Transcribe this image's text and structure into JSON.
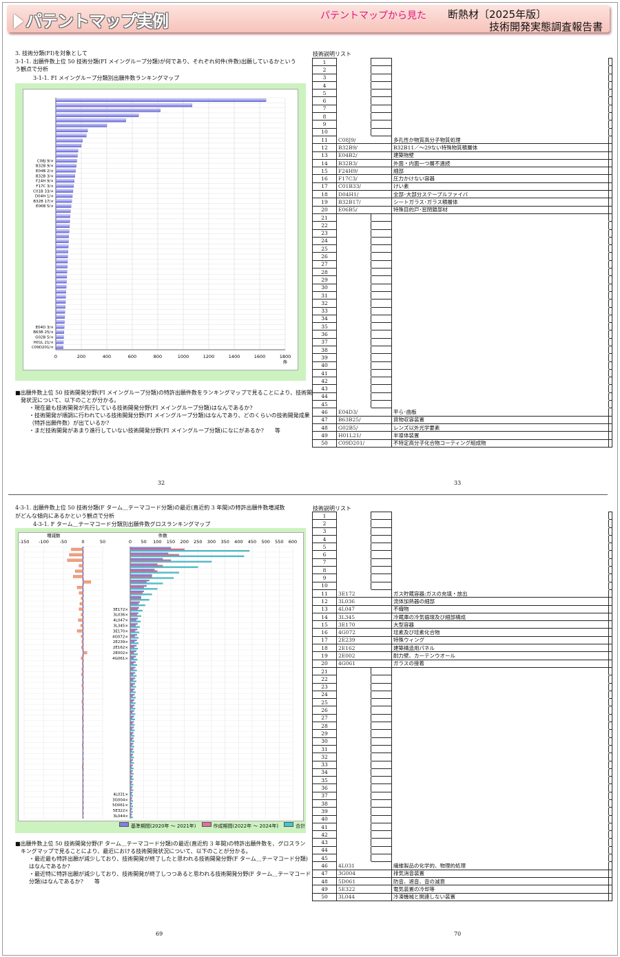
{
  "header": {
    "title": "パテントマップ実例",
    "subtitle": "パテントマップから見た",
    "right_line1": "断熱材〔2025年版〕",
    "right_line2": "技術開発実態調査報告書",
    "accent_color": "#e0147e"
  },
  "p32": {
    "line1": "3. 技術分類(FI)を対象として",
    "line2": "3-1-1. 出願件数上位 50 技術分類(FI メイングループ分類)が何であり、それぞれ何件(件数)出願しているかという",
    "line3": "う観点で分析",
    "fig_title": "3-1-1. FI メイングループ分類別出願件数ランキングマップ",
    "bullets": [
      "■出願件数上位 50 技術開発分野(FI メイングループ分類)の特許出願件数をランキングマップで見ることにより、技術開",
      "発状況について、以下のことが分かる。",
      "・現在最も技術開発が先行している技術開発分野(FI メイングループ分類)はなんであるか?",
      "・技術開発が順調に行われている技術開発分野(FI メイングループ分類)はなんであり、どのくらいの技術開発成果",
      "（特許出願件数）が出ているか?",
      "・まだ技術開発があまり進行していない技術開発分野(FI メイングループ分類)になにがあるか?　　等"
    ],
    "page_no": "32"
  },
  "chart_data": [
    {
      "type": "bar",
      "orientation": "horizontal",
      "title": "3-1-1. FI メイングループ分類別出願件数ランキングマップ",
      "xlabel": "件",
      "xlim": [
        0,
        1800
      ],
      "xticks": [
        "0",
        "200",
        "400",
        "600",
        "800",
        "1000",
        "1200",
        "1400",
        "1600",
        "1800"
      ],
      "labels": [
        "",
        "",
        "",
        "",
        "",
        "",
        "",
        "",
        "",
        "",
        "",
        "",
        "C08J 9/×",
        "B32B 9/×",
        "E04B 2/×",
        "B32B 3/×",
        "F24H 9/×",
        "F17C 3/×",
        "C01B 33/×",
        "D04H 1/×",
        "B32B 17/×",
        "E06B 5/×",
        "",
        "",
        "",
        "",
        "",
        "",
        "",
        "",
        "",
        "",
        "",
        "",
        "",
        "",
        "",
        "",
        "",
        "",
        "",
        "",
        "",
        "",
        "",
        "E04D 3/×",
        "B63B 25/×",
        "G02B 5/×",
        "H01L 21/×",
        "C09D201/×"
      ],
      "values": [
        1650,
        1070,
        820,
        650,
        550,
        400,
        250,
        240,
        210,
        200,
        175,
        170,
        165,
        160,
        155,
        150,
        145,
        140,
        135,
        130,
        125,
        120,
        115,
        112,
        110,
        108,
        105,
        102,
        100,
        98,
        96,
        94,
        92,
        90,
        88,
        86,
        84,
        82,
        80,
        78,
        76,
        74,
        72,
        70,
        68,
        66,
        64,
        62,
        60,
        58
      ]
    },
    {
      "type": "bar",
      "orientation": "horizontal",
      "title": "4-3-1. F ターム＿テーマコード分類別出願件数グロスランキングマップ",
      "left_panel_label": "増減数",
      "right_panel_label": "件数",
      "left_xlim": [
        -150,
        50
      ],
      "left_xticks": [
        "-150",
        "-100",
        "-50",
        "0",
        "50"
      ],
      "right_xlim": [
        0,
        600
      ],
      "right_xticks": [
        "0",
        "50",
        "100",
        "150",
        "200",
        "250",
        "300",
        "350",
        "400",
        "450",
        "500",
        "550",
        "600"
      ],
      "labels": [
        "",
        "",
        "",
        "",
        "",
        "",
        "",
        "",
        "",
        "",
        "",
        "3E172×",
        "3L036×",
        "4L047×",
        "3L345×",
        "3E170×",
        "4G072×",
        "2E239×",
        "2E162×",
        "2E002×",
        "4G061×",
        "",
        "",
        "",
        "",
        "",
        "",
        "",
        "",
        "",
        "",
        "",
        "",
        "",
        "",
        "",
        "",
        "",
        "",
        "",
        "",
        "",
        "",
        "",
        "",
        "4L031×",
        "3G004×",
        "5D061×",
        "5E322×",
        "3L044×"
      ],
      "series": [
        {
          "name": "基準期間(2020年 ～ 2021年)",
          "values": [
            150,
            140,
            120,
            100,
            90,
            80,
            70,
            60,
            50,
            40,
            35,
            32,
            30,
            28,
            27,
            26,
            25,
            24,
            23,
            22,
            21,
            20,
            19,
            18,
            18,
            17,
            16,
            16,
            15,
            15,
            14,
            14,
            13,
            13,
            12,
            12,
            11,
            11,
            10,
            10,
            9,
            9,
            9,
            8,
            8,
            8,
            7,
            7,
            7,
            6
          ]
        },
        {
          "name": "作成期間(2022年 ～ 2024年)",
          "values": [
            200,
            180,
            150,
            120,
            100,
            80,
            60,
            50,
            45,
            40,
            30,
            28,
            25,
            22,
            20,
            18,
            17,
            16,
            15,
            14,
            13,
            12,
            12,
            11,
            11,
            10,
            10,
            9,
            9,
            9,
            8,
            8,
            8,
            7,
            7,
            7,
            6,
            6,
            6,
            5,
            5,
            5,
            5,
            4,
            4,
            4,
            4,
            3,
            3,
            3
          ]
        },
        {
          "name": "合計",
          "values": [
            440,
            420,
            300,
            250,
            180,
            160,
            120,
            100,
            80,
            70,
            55,
            45,
            40,
            38,
            35,
            33,
            30,
            30,
            28,
            27,
            26,
            25,
            24,
            23,
            22,
            21,
            20,
            20,
            19,
            18,
            18,
            17,
            16,
            16,
            15,
            15,
            14,
            14,
            13,
            13,
            12,
            12,
            12,
            11,
            11,
            10,
            10,
            10,
            9,
            9
          ]
        },
        {
          "name": "増減数",
          "values": [
            -30,
            -35,
            -40,
            -10,
            -20,
            -25,
            20,
            -15,
            -10,
            -5,
            -8,
            -10,
            -5,
            -12,
            -6,
            -15,
            -5,
            -3,
            -4,
            10,
            -5,
            -2,
            -3,
            -4,
            -2,
            -3,
            -2,
            -1,
            -3,
            -2,
            -1,
            -2,
            -1,
            -2,
            -1,
            -1,
            -2,
            -1,
            -1,
            -1,
            -2,
            -1,
            -1,
            -1,
            -1,
            -1,
            -1,
            -1,
            -1,
            -1
          ]
        }
      ]
    }
  ],
  "list33": {
    "title": "技術説明リスト",
    "rows": [
      {
        "no": "1",
        "code": "",
        "desc": ""
      },
      {
        "no": "2",
        "code": "",
        "desc": ""
      },
      {
        "no": "3",
        "code": "",
        "desc": ""
      },
      {
        "no": "4",
        "code": "",
        "desc": ""
      },
      {
        "no": "5",
        "code": "",
        "desc": ""
      },
      {
        "no": "6",
        "code": "",
        "desc": ""
      },
      {
        "no": "7",
        "code": "",
        "desc": ""
      },
      {
        "no": "8",
        "code": "",
        "desc": ""
      },
      {
        "no": "9",
        "code": "",
        "desc": ""
      },
      {
        "no": "10",
        "code": "",
        "desc": ""
      },
      {
        "no": "11",
        "code": "C08J9/",
        "desc": "多孔性か物質高分子物質処理"
      },
      {
        "no": "12",
        "code": "B32B9/",
        "desc": "B32B11／～29ない特殊物質積層体"
      },
      {
        "no": "13",
        "code": "E04B2/",
        "desc": "建築物壁"
      },
      {
        "no": "14",
        "code": "B32B3/",
        "desc": "外面・内面一つ層不連続"
      },
      {
        "no": "15",
        "code": "F24H9/",
        "desc": "細部"
      },
      {
        "no": "16",
        "code": "F17C3/",
        "desc": "圧力かけない容器"
      },
      {
        "no": "17",
        "code": "C01B33/",
        "desc": "けい素"
      },
      {
        "no": "18",
        "code": "D04H1/",
        "desc": "全部･大部分ステープルファイバ"
      },
      {
        "no": "19",
        "code": "B32B17/",
        "desc": "シートガラス･ガラス積層体"
      },
      {
        "no": "20",
        "code": "E06B5/",
        "desc": "特殊目的戸･窓閉鎖部材"
      },
      {
        "no": "21",
        "code": "",
        "desc": ""
      },
      {
        "no": "22",
        "code": "",
        "desc": ""
      },
      {
        "no": "23",
        "code": "",
        "desc": ""
      },
      {
        "no": "24",
        "code": "",
        "desc": ""
      },
      {
        "no": "25",
        "code": "",
        "desc": ""
      },
      {
        "no": "26",
        "code": "",
        "desc": ""
      },
      {
        "no": "27",
        "code": "",
        "desc": ""
      },
      {
        "no": "28",
        "code": "",
        "desc": ""
      },
      {
        "no": "29",
        "code": "",
        "desc": ""
      },
      {
        "no": "30",
        "code": "",
        "desc": ""
      },
      {
        "no": "31",
        "code": "",
        "desc": ""
      },
      {
        "no": "32",
        "code": "",
        "desc": ""
      },
      {
        "no": "33",
        "code": "",
        "desc": ""
      },
      {
        "no": "34",
        "code": "",
        "desc": ""
      },
      {
        "no": "35",
        "code": "",
        "desc": ""
      },
      {
        "no": "36",
        "code": "",
        "desc": ""
      },
      {
        "no": "37",
        "code": "",
        "desc": ""
      },
      {
        "no": "38",
        "code": "",
        "desc": ""
      },
      {
        "no": "39",
        "code": "",
        "desc": ""
      },
      {
        "no": "40",
        "code": "",
        "desc": ""
      },
      {
        "no": "41",
        "code": "",
        "desc": ""
      },
      {
        "no": "42",
        "code": "",
        "desc": ""
      },
      {
        "no": "43",
        "code": "",
        "desc": ""
      },
      {
        "no": "44",
        "code": "",
        "desc": ""
      },
      {
        "no": "45",
        "code": "",
        "desc": ""
      },
      {
        "no": "46",
        "code": "E04D3/",
        "desc": "平ら･曲板"
      },
      {
        "no": "47",
        "code": "B63B25/",
        "desc": "貨物収容装置"
      },
      {
        "no": "48",
        "code": "G02B5/",
        "desc": "レンズ以外光学要素"
      },
      {
        "no": "49",
        "code": "H01L21/",
        "desc": "半導体装置"
      },
      {
        "no": "50",
        "code": "C09D201/",
        "desc": "不特定高分子化合物コーティング組成物"
      }
    ],
    "page_no": "33"
  },
  "p69": {
    "line1": "4-3-1. 出願件数上位 50 技術分類(F ターム＿テーマコード分類)の最近(直近約 3 年間)の特許出願件数増減数",
    "line2": "がどんな傾向にあるかという観点で分析",
    "fig_title": "4-3-1. F ターム＿テーマコード分類別出願件数グロスランキングマップ",
    "bullets": [
      "■出願件数上位 50 技術開発分野(F ターム＿テーマコード分類)の最近(直近約 3 年間)の特許出願件数を、グロスラン",
      "キングマップで見ることにより、最近における技術開発状況について、以下のことが分かる。",
      "・最近最も特許出願が減少しており、技術開発が終了したと思われる技術開発分野(F ターム＿テーマコード分類)",
      "はなんであるか?",
      "・最近特に特許出願が減少しており、技術開発が終了しつつあると思われる技術開発分野(F ターム＿テーマコード",
      "分類)はなんであるか?　　等"
    ],
    "page_no": "69"
  },
  "list70": {
    "title": "技術説明リスト",
    "rows": [
      {
        "no": "1",
        "code": "",
        "desc": ""
      },
      {
        "no": "2",
        "code": "",
        "desc": ""
      },
      {
        "no": "3",
        "code": "",
        "desc": ""
      },
      {
        "no": "4",
        "code": "",
        "desc": ""
      },
      {
        "no": "5",
        "code": "",
        "desc": ""
      },
      {
        "no": "6",
        "code": "",
        "desc": ""
      },
      {
        "no": "7",
        "code": "",
        "desc": ""
      },
      {
        "no": "8",
        "code": "",
        "desc": ""
      },
      {
        "no": "9",
        "code": "",
        "desc": ""
      },
      {
        "no": "10",
        "code": "",
        "desc": ""
      },
      {
        "no": "11",
        "code": "3E172",
        "desc": "ガス貯蔵容器;ガスの充填・放出"
      },
      {
        "no": "12",
        "code": "3L036",
        "desc": "流体加熱器の細部"
      },
      {
        "no": "13",
        "code": "4L047",
        "desc": "不織物"
      },
      {
        "no": "14",
        "code": "3L345",
        "desc": "冷蔵庫の冷気循環及び細部構成"
      },
      {
        "no": "15",
        "code": "3E170",
        "desc": "大型容器"
      },
      {
        "no": "16",
        "code": "4G072",
        "desc": "珪素及び珪素化合物"
      },
      {
        "no": "17",
        "code": "2E239",
        "desc": "特殊ウィング"
      },
      {
        "no": "18",
        "code": "2E162",
        "desc": "建築構造用パネル"
      },
      {
        "no": "19",
        "code": "2E002",
        "desc": "耐力壁、カーテンウオール"
      },
      {
        "no": "20",
        "code": "4G061",
        "desc": "ガラスの接着"
      },
      {
        "no": "21",
        "code": "",
        "desc": ""
      },
      {
        "no": "22",
        "code": "",
        "desc": ""
      },
      {
        "no": "23",
        "code": "",
        "desc": ""
      },
      {
        "no": "24",
        "code": "",
        "desc": ""
      },
      {
        "no": "25",
        "code": "",
        "desc": ""
      },
      {
        "no": "26",
        "code": "",
        "desc": ""
      },
      {
        "no": "27",
        "code": "",
        "desc": ""
      },
      {
        "no": "28",
        "code": "",
        "desc": ""
      },
      {
        "no": "29",
        "code": "",
        "desc": ""
      },
      {
        "no": "30",
        "code": "",
        "desc": ""
      },
      {
        "no": "31",
        "code": "",
        "desc": ""
      },
      {
        "no": "32",
        "code": "",
        "desc": ""
      },
      {
        "no": "33",
        "code": "",
        "desc": ""
      },
      {
        "no": "34",
        "code": "",
        "desc": ""
      },
      {
        "no": "35",
        "code": "",
        "desc": ""
      },
      {
        "no": "36",
        "code": "",
        "desc": ""
      },
      {
        "no": "37",
        "code": "",
        "desc": ""
      },
      {
        "no": "38",
        "code": "",
        "desc": ""
      },
      {
        "no": "39",
        "code": "",
        "desc": ""
      },
      {
        "no": "40",
        "code": "",
        "desc": ""
      },
      {
        "no": "41",
        "code": "",
        "desc": ""
      },
      {
        "no": "42",
        "code": "",
        "desc": ""
      },
      {
        "no": "43",
        "code": "",
        "desc": ""
      },
      {
        "no": "44",
        "code": "",
        "desc": ""
      },
      {
        "no": "45",
        "code": "",
        "desc": ""
      },
      {
        "no": "46",
        "code": "4L031",
        "desc": "繊維製品の化学的、物理的処理"
      },
      {
        "no": "47",
        "code": "3G004",
        "desc": "排気消音装置"
      },
      {
        "no": "48",
        "code": "5D061",
        "desc": "防音、遮音、音の減衰"
      },
      {
        "no": "49",
        "code": "5E322",
        "desc": "電気装置の冷却等"
      },
      {
        "no": "50",
        "code": "3L044",
        "desc": "冷凍機械と関連しない装置"
      }
    ],
    "page_no": "70"
  }
}
